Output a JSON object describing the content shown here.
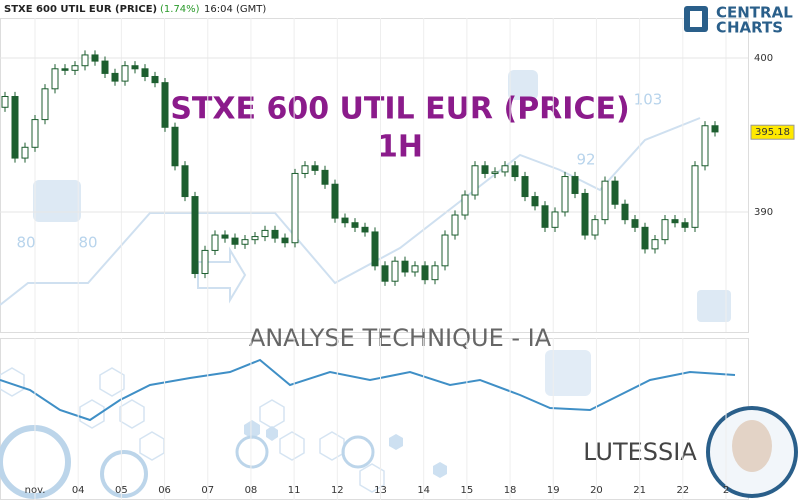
{
  "header": {
    "symbol": "STXE 600 UTIL EUR (PRICE)",
    "change": "(1.74%)",
    "time": "16:04 (GMT)"
  },
  "logo": {
    "line1": "CENTRAL",
    "line2": "CHARTS"
  },
  "overlay": {
    "title": "STXE 600 UTIL EUR (PRICE)",
    "timeframe": "1H",
    "subtitle": "ANALYSE TECHNIQUE - IA",
    "brand": "LUTESSIA"
  },
  "watermark_labels": [
    "80",
    "80",
    "92",
    "103"
  ],
  "chart_data": {
    "type": "candlestick",
    "color": "#1d5e2f",
    "categories": [
      "nov.",
      "04",
      "05",
      "06",
      "07",
      "08",
      "11",
      "12",
      "13",
      "14",
      "15",
      "18",
      "19",
      "20",
      "21",
      "22",
      "2"
    ],
    "ylim": [
      382.2,
      402.6
    ],
    "yticks": [
      390,
      400
    ],
    "last_price": 395.18,
    "last_price_color": "#ffe900",
    "open": [
      396.8,
      397.5,
      393.5,
      394.2,
      396.0,
      398.0,
      399.3,
      399.2,
      399.5,
      400.2,
      399.8,
      399.0,
      398.5,
      399.5,
      399.3,
      398.8,
      398.4,
      395.5,
      393.0,
      391.0,
      386.0,
      387.5,
      388.5,
      388.3,
      387.9,
      388.2,
      388.4,
      388.8,
      388.3,
      388.0,
      392.5,
      393.0,
      392.7,
      391.8,
      389.6,
      389.3,
      389.0,
      388.7,
      386.5,
      385.5,
      386.8,
      386.1,
      386.5,
      385.6,
      386.5,
      388.5,
      389.8,
      391.1,
      393.0,
      392.5,
      392.6,
      393.0,
      392.3,
      391.0,
      390.4,
      389.0,
      390.0,
      392.3,
      391.2,
      388.5,
      389.5,
      392.0,
      390.5,
      389.5,
      389.0,
      387.6,
      388.2,
      389.5,
      389.3,
      389.0,
      393.0,
      395.6
    ],
    "high": [
      397.8,
      397.8,
      394.5,
      396.3,
      398.3,
      399.6,
      399.6,
      399.8,
      400.5,
      400.5,
      400.1,
      399.3,
      399.8,
      399.8,
      399.6,
      399.1,
      398.7,
      395.8,
      393.3,
      391.3,
      387.8,
      388.8,
      388.8,
      388.6,
      388.5,
      388.7,
      389.1,
      389.1,
      388.6,
      392.8,
      393.3,
      393.3,
      393.0,
      392.1,
      389.9,
      389.6,
      389.3,
      389.0,
      386.8,
      387.1,
      387.1,
      386.8,
      386.8,
      386.8,
      388.8,
      390.1,
      391.4,
      393.3,
      393.3,
      392.9,
      393.3,
      393.3,
      392.6,
      391.3,
      390.7,
      390.3,
      392.6,
      392.6,
      391.5,
      389.8,
      392.3,
      392.3,
      390.8,
      389.8,
      389.3,
      388.5,
      389.8,
      389.8,
      389.6,
      393.3,
      395.9,
      395.9
    ],
    "low": [
      396.5,
      393.2,
      393.2,
      393.9,
      395.7,
      397.7,
      398.9,
      398.9,
      399.2,
      399.5,
      398.7,
      398.2,
      398.2,
      399.0,
      398.5,
      398.1,
      395.2,
      392.7,
      390.7,
      385.7,
      385.7,
      387.2,
      388.0,
      387.6,
      387.6,
      387.9,
      388.1,
      388.0,
      387.7,
      387.7,
      392.2,
      392.4,
      391.5,
      389.3,
      389.0,
      388.7,
      388.4,
      386.2,
      385.2,
      385.2,
      385.8,
      385.8,
      385.3,
      385.3,
      386.2,
      388.2,
      389.5,
      390.8,
      392.2,
      392.2,
      392.3,
      392.0,
      390.7,
      390.1,
      388.7,
      388.7,
      389.7,
      390.9,
      388.2,
      388.2,
      389.2,
      390.2,
      389.2,
      388.7,
      387.3,
      387.3,
      387.9,
      389.0,
      388.7,
      388.7,
      392.7,
      394.9
    ],
    "close": [
      397.5,
      393.5,
      394.2,
      396.0,
      398.0,
      399.3,
      399.2,
      399.5,
      400.2,
      399.8,
      399.0,
      398.5,
      399.5,
      399.3,
      398.8,
      398.4,
      395.5,
      393.0,
      391.0,
      386.0,
      387.5,
      388.5,
      388.3,
      387.9,
      388.2,
      388.4,
      388.8,
      388.3,
      388.0,
      392.5,
      393.0,
      392.7,
      391.8,
      389.6,
      389.3,
      389.0,
      388.7,
      386.5,
      385.5,
      386.8,
      386.1,
      386.5,
      385.6,
      386.5,
      388.5,
      389.8,
      391.1,
      393.0,
      392.5,
      392.6,
      393.0,
      392.3,
      391.0,
      390.4,
      389.0,
      390.0,
      392.3,
      391.2,
      388.5,
      389.5,
      392.0,
      390.5,
      389.5,
      389.0,
      387.6,
      388.2,
      389.5,
      389.3,
      389.0,
      393.0,
      395.6,
      395.2
    ]
  }
}
